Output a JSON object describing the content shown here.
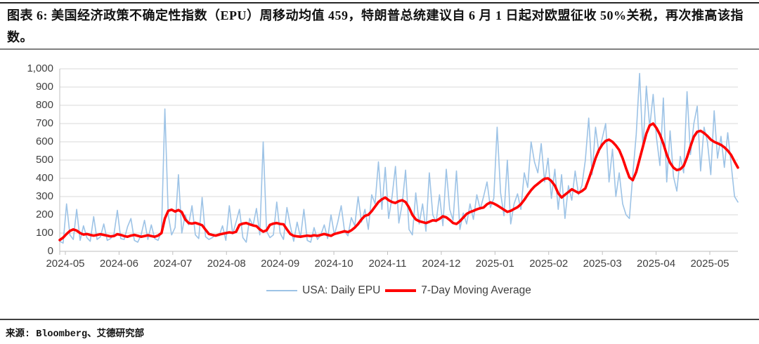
{
  "header": {
    "title": "图表 6: 美国经济政策不确定性指数（EPU）周移动均值 459，特朗普总统建议自 6 月 1 日起对欧盟征收 50%关税，再次推高该指数。"
  },
  "footer": {
    "source": "来源: Bloomberg、艾德研究部"
  },
  "colors": {
    "daily_epu_line": "#9DC3E6",
    "moving_average_line": "#FF0000",
    "gridline": "#D9D9D9",
    "axis_line": "#BFBFBF",
    "axis_text": "#404040"
  },
  "chart_data": {
    "type": "line",
    "title": "",
    "xlabel": "",
    "ylabel": "",
    "grid": "horizontal",
    "legend_position": "bottom",
    "ylim": [
      0,
      1000
    ],
    "y_ticks": [
      0,
      100,
      200,
      300,
      400,
      500,
      600,
      700,
      800,
      900,
      1000
    ],
    "x_tick_labels": [
      "2024-05",
      "2024-06",
      "2024-07",
      "2024-08",
      "2024-09",
      "2024-10",
      "2024-11",
      "2024-12",
      "2025-01",
      "2025-02",
      "2025-03",
      "2025-04",
      "2025-05"
    ],
    "estimation_note": "values read from plot at ~2-day intervals, 2024-05 through late 2025-05; latest 7-day moving average 459",
    "series": [
      {
        "name": "USA: Daily EPU",
        "color": "#9DC3E6",
        "line_width": 1.6,
        "values": [
          55,
          45,
          260,
          90,
          65,
          230,
          60,
          140,
          75,
          55,
          190,
          65,
          80,
          150,
          60,
          70,
          95,
          225,
          70,
          65,
          135,
          180,
          60,
          50,
          90,
          170,
          65,
          145,
          70,
          60,
          110,
          780,
          200,
          90,
          130,
          420,
          100,
          200,
          145,
          250,
          90,
          70,
          295,
          80,
          65,
          75,
          90,
          85,
          140,
          60,
          250,
          95,
          160,
          230,
          75,
          50,
          180,
          140,
          235,
          90,
          600,
          110,
          75,
          90,
          270,
          100,
          65,
          240,
          140,
          55,
          160,
          75,
          230,
          60,
          50,
          130,
          65,
          90,
          145,
          70,
          200,
          90,
          160,
          250,
          110,
          85,
          185,
          140,
          300,
          160,
          230,
          120,
          310,
          260,
          490,
          230,
          460,
          180,
          300,
          465,
          155,
          260,
          445,
          120,
          90,
          320,
          150,
          260,
          110,
          430,
          200,
          160,
          310,
          140,
          450,
          230,
          170,
          440,
          120,
          210,
          150,
          260,
          175,
          310,
          230,
          300,
          380,
          240,
          290,
          680,
          320,
          195,
          500,
          150,
          260,
          315,
          230,
          430,
          350,
          600,
          490,
          430,
          590,
          380,
          510,
          290,
          450,
          230,
          420,
          180,
          360,
          280,
          440,
          310,
          360,
          500,
          730,
          420,
          680,
          540,
          620,
          700,
          380,
          560,
          300,
          430,
          260,
          200,
          180,
          420,
          640,
          975,
          560,
          905,
          680,
          860,
          620,
          470,
          840,
          380,
          660,
          410,
          330,
          520,
          430,
          875,
          530,
          700,
          795,
          440,
          680,
          600,
          420,
          770,
          510,
          630,
          460,
          650,
          480,
          300,
          270
        ]
      },
      {
        "name": "7-Day Moving Average",
        "color": "#FF0000",
        "line_width": 3.6,
        "values": [
          62,
          75,
          95,
          112,
          120,
          114,
          100,
          92,
          95,
          90,
          86,
          90,
          94,
          90,
          86,
          82,
          84,
          94,
          90,
          84,
          80,
          86,
          90,
          85,
          80,
          84,
          88,
          84,
          80,
          86,
          100,
          180,
          222,
          228,
          218,
          226,
          215,
          175,
          155,
          152,
          156,
          150,
          143,
          118,
          95,
          90,
          86,
          92,
          96,
          100,
          104,
          101,
          107,
          145,
          152,
          155,
          148,
          142,
          138,
          120,
          108,
          115,
          145,
          152,
          155,
          150,
          148,
          120,
          95,
          85,
          82,
          80,
          83,
          86,
          84,
          88,
          85,
          90,
          95,
          90,
          85,
          95,
          100,
          105,
          110,
          105,
          115,
          130,
          150,
          175,
          195,
          200,
          220,
          245,
          270,
          285,
          295,
          280,
          270,
          265,
          275,
          280,
          270,
          240,
          200,
          175,
          165,
          160,
          155,
          162,
          170,
          168,
          178,
          192,
          186,
          172,
          155,
          150,
          165,
          185,
          205,
          215,
          222,
          230,
          236,
          240,
          258,
          268,
          262,
          252,
          240,
          228,
          216,
          222,
          232,
          242,
          258,
          282,
          310,
          335,
          355,
          370,
          385,
          398,
          400,
          385,
          360,
          318,
          295,
          310,
          325,
          340,
          330,
          320,
          330,
          345,
          395,
          450,
          510,
          555,
          585,
          605,
          612,
          600,
          580,
          555,
          510,
          455,
          405,
          390,
          435,
          505,
          575,
          645,
          690,
          700,
          675,
          640,
          590,
          530,
          485,
          458,
          445,
          450,
          468,
          515,
          575,
          628,
          655,
          660,
          648,
          632,
          612,
          600,
          592,
          583,
          570,
          552,
          528,
          492,
          459
        ]
      }
    ]
  }
}
